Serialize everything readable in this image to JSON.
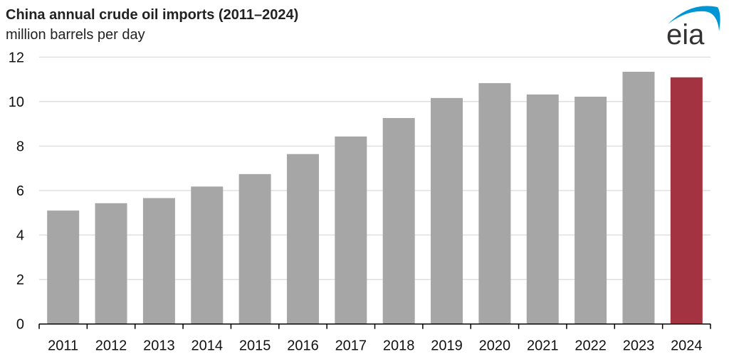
{
  "chart_data": {
    "type": "bar",
    "title": "China annual crude oil imports (2011–2024)",
    "subtitle": "million barrels per day",
    "xlabel": "",
    "ylabel": "million barrels per day",
    "categories": [
      "2011",
      "2012",
      "2013",
      "2014",
      "2015",
      "2016",
      "2017",
      "2018",
      "2019",
      "2020",
      "2021",
      "2022",
      "2023",
      "2024"
    ],
    "values": [
      5.1,
      5.43,
      5.66,
      6.18,
      6.74,
      7.64,
      8.43,
      9.26,
      10.16,
      10.83,
      10.32,
      10.22,
      11.34,
      11.09
    ],
    "ylim": [
      0,
      12
    ],
    "yticks": [
      "0",
      "2",
      "4",
      "6",
      "8",
      "10",
      "12"
    ],
    "grid": true,
    "colors": {
      "default": "#a6a6a6",
      "highlight": "#a33340",
      "highlight_category": "2024"
    }
  },
  "logo": {
    "text": "eia",
    "color": "#333333",
    "arc_color": "#0096d6"
  }
}
